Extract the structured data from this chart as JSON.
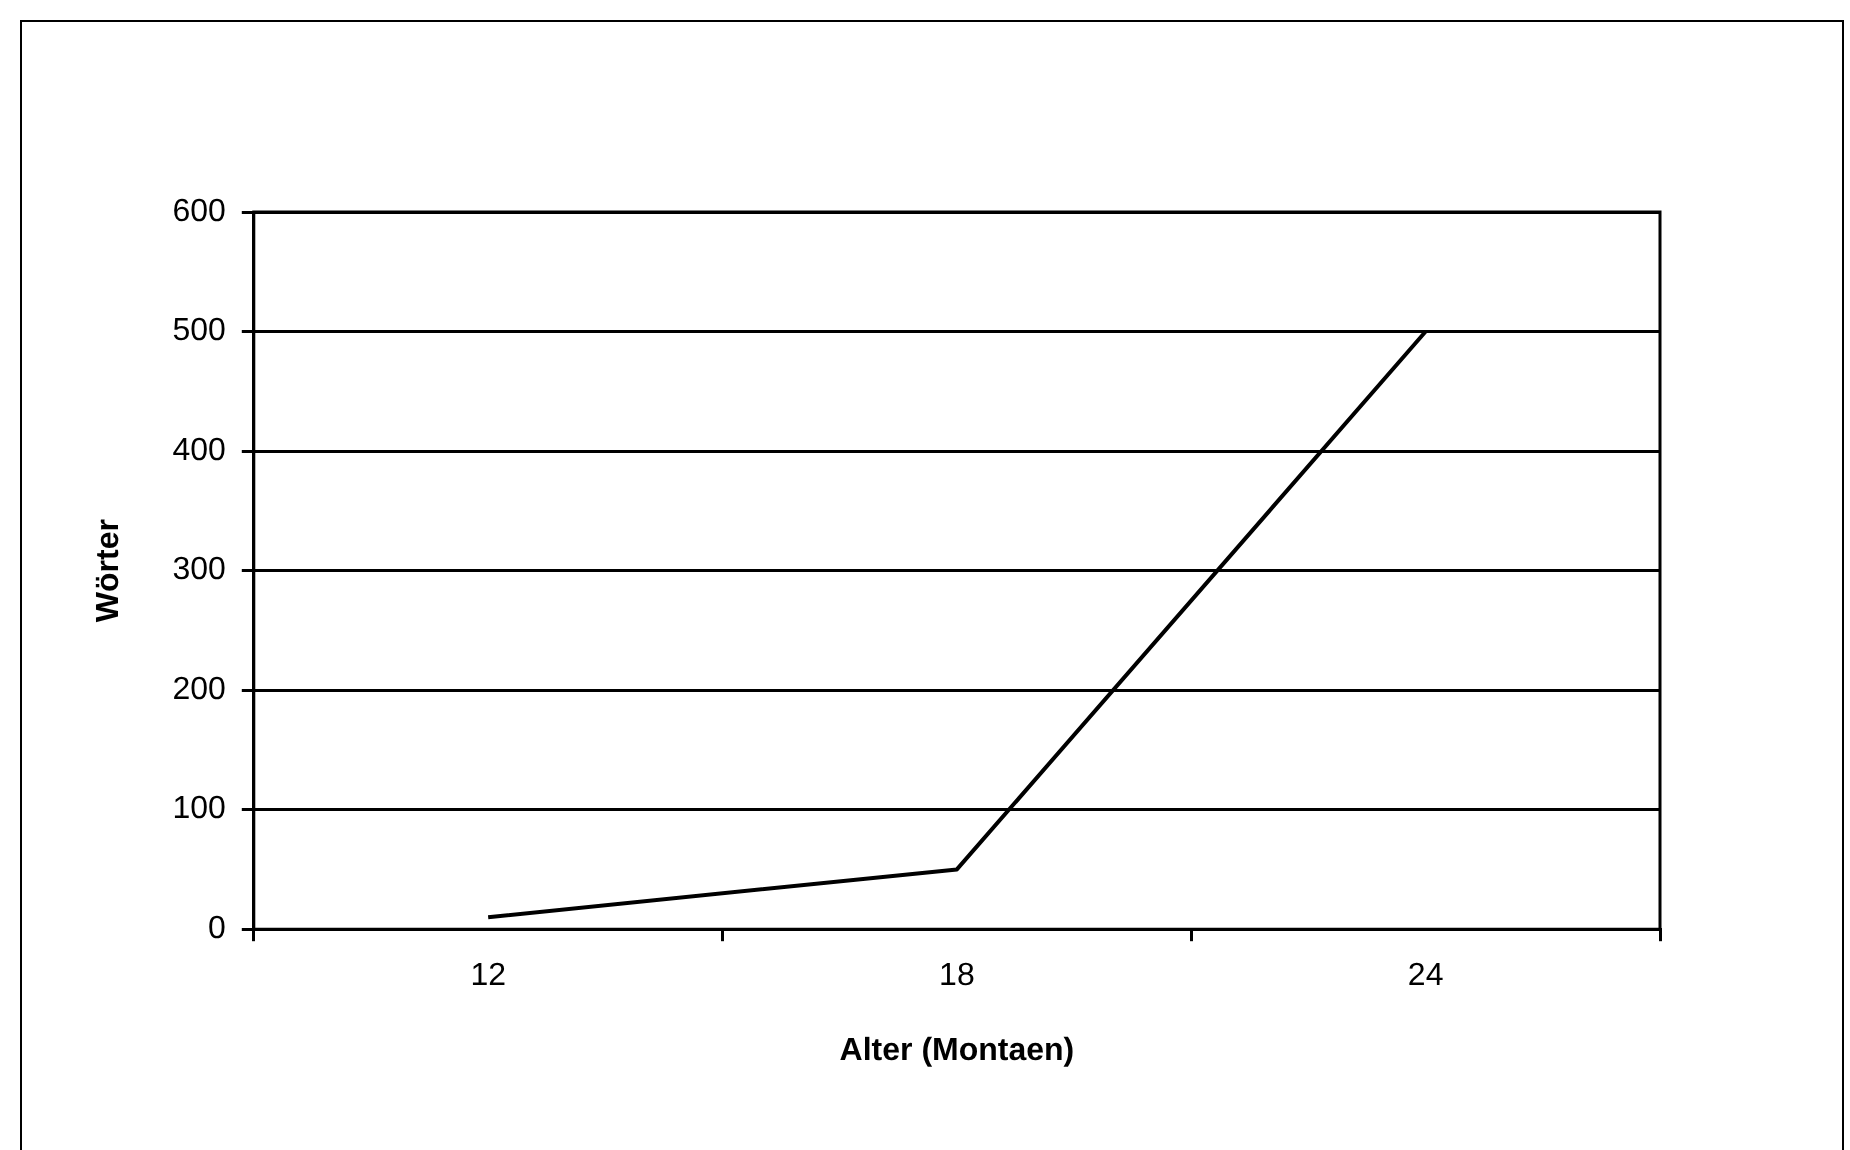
{
  "chart_data": {
    "type": "line",
    "xlabel": "Alter (Montaen)",
    "ylabel": "Wörter",
    "categories": [
      "12",
      "18",
      "24"
    ],
    "series": [
      {
        "color": "#000000",
        "values": [
          10,
          50,
          500
        ]
      }
    ],
    "ylim": [
      0,
      600
    ],
    "yticks": [
      0,
      100,
      200,
      300,
      400,
      500,
      600
    ],
    "grid": "y",
    "legend": false,
    "marker": "none",
    "line_style": "solid"
  }
}
